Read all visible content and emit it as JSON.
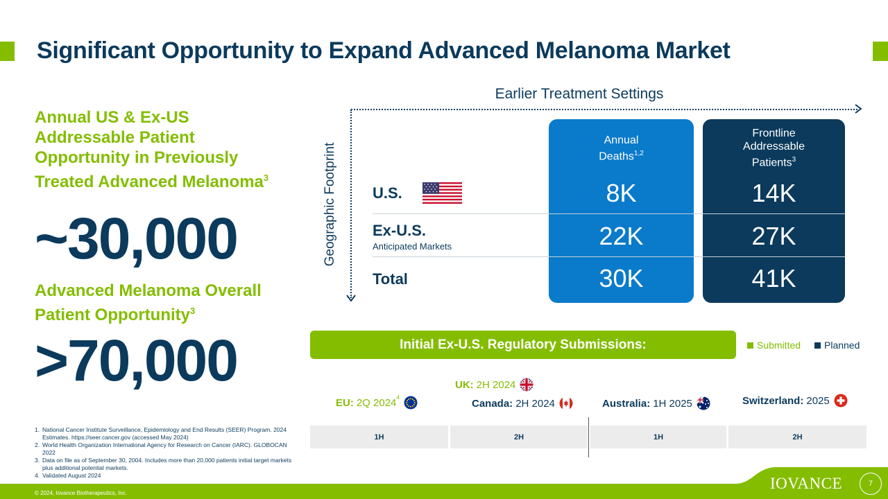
{
  "title": "Significant Opportunity to Expand Advanced Melanoma Market",
  "left": {
    "heading1": "Annual US & Ex-US Addressable Patient Opportunity in Previously Treated Advanced Melanoma",
    "heading1_sup": "3",
    "big_number1": "~30,000",
    "heading2": "Advanced Melanoma Overall Patient Opportunity",
    "heading2_sup": "3",
    "big_number2": ">70,000"
  },
  "footnotes": [
    {
      "num": "1.",
      "text": "National Cancer Institute Surveillance, Epidemiology and End Results (SEER) Program. 2024 Estimates. https://seer.cancer.gov (accessed May 2024)"
    },
    {
      "num": "2.",
      "text": "World Health Organization International Agency for Research on Cancer (IARC). GLOBOCAN 2022"
    },
    {
      "num": "3.",
      "text": "Data on file as of September 30, 2004. Includes more than 20,000 patients initial target markets plus additional potential markets."
    },
    {
      "num": "4.",
      "text": "Validated August 2024"
    }
  ],
  "axes": {
    "x_label": "Earlier Treatment Settings",
    "y_label": "Geographic Footprint"
  },
  "table": {
    "col_a_line1": "Annual",
    "col_a_line2": "Deaths",
    "col_a_sup": "1,2",
    "col_b_line1": "Frontline",
    "col_b_line2": "Addressable",
    "col_b_line3": "Patients",
    "col_b_sup": "3",
    "rows": [
      {
        "label": "U.S.",
        "sub": "",
        "a": "8K",
        "b": "14K"
      },
      {
        "label": "Ex-U.S.",
        "sub": "Anticipated Markets",
        "a": "22K",
        "b": "27K"
      },
      {
        "label": "Total",
        "sub": "",
        "a": "30K",
        "b": "41K"
      }
    ]
  },
  "regulatory": {
    "title": "Initial Ex-U.S. Regulatory Submissions:",
    "legend_submitted": "Submitted",
    "legend_planned": "Planned",
    "colors": {
      "submitted": "#84bd00",
      "planned": "#0b3a5c"
    },
    "items": [
      {
        "region": "EU:",
        "date": "2Q 2024",
        "sup": "4",
        "status": "submitted",
        "icon": "eu-flag-icon"
      },
      {
        "region": "UK:",
        "date": "2H 2024",
        "sup": "",
        "status": "submitted",
        "icon": "uk-flag-icon"
      },
      {
        "region": "Canada:",
        "date": "2H 2024",
        "sup": "",
        "status": "planned",
        "icon": "canada-flag-icon"
      },
      {
        "region": "Australia:",
        "date": "1H 2025",
        "sup": "",
        "status": "planned",
        "icon": "australia-flag-icon"
      },
      {
        "region": "Switzerland:",
        "date": "2025",
        "sup": "",
        "status": "planned",
        "icon": "switzerland-flag-icon"
      }
    ],
    "timeline": [
      "1H",
      "2H",
      "1H",
      "2H"
    ]
  },
  "footer": {
    "copyright": "© 2024, Iovance Biotherapeutics, Inc.",
    "logo": "IOVANCE",
    "page": "7"
  }
}
